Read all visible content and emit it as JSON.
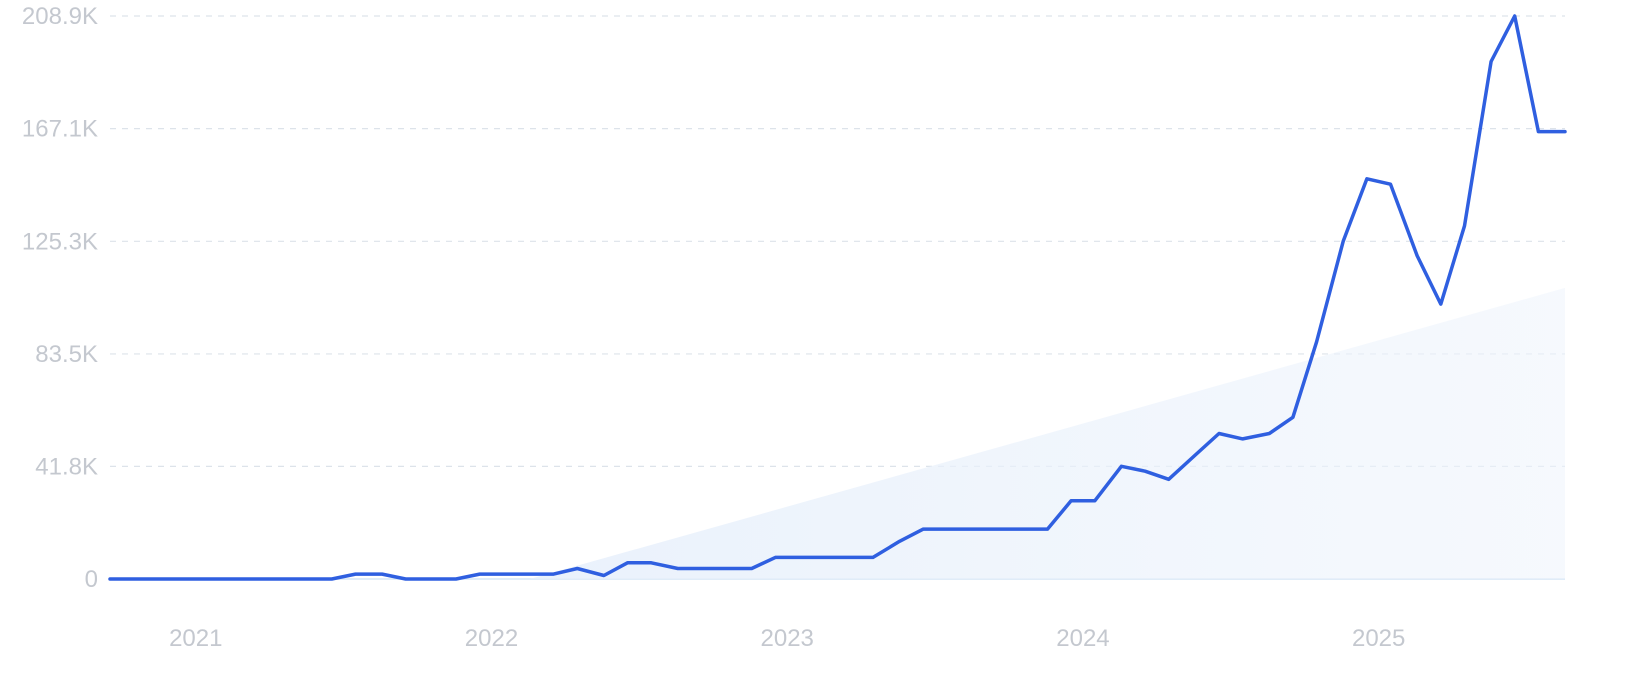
{
  "chart_data": {
    "type": "line",
    "title": "",
    "xlabel": "",
    "ylabel": "",
    "ylim": [
      0,
      208900
    ],
    "xlim": [
      2020.75,
      2025.67
    ],
    "y_ticks": [
      {
        "value": 0,
        "label": "0"
      },
      {
        "value": 41800,
        "label": "41.8K"
      },
      {
        "value": 83500,
        "label": "83.5K"
      },
      {
        "value": 125300,
        "label": "125.3K"
      },
      {
        "value": 167100,
        "label": "167.1K"
      },
      {
        "value": 208900,
        "label": "208.9K"
      }
    ],
    "x_ticks": [
      {
        "value": 2021,
        "label": "2021"
      },
      {
        "value": 2022,
        "label": "2022"
      },
      {
        "value": 2023,
        "label": "2023"
      },
      {
        "value": 2024,
        "label": "2024"
      },
      {
        "value": 2025,
        "label": "2025"
      }
    ],
    "grid": true,
    "colors": {
      "line": "#2f5fe0",
      "trend_fill": "#e3edfb",
      "grid": "#dde3ea",
      "tick_text": "#c4c8cf",
      "baseline": "#d6e6f5"
    },
    "series": [
      {
        "style": "line",
        "x": [
          2020.75,
          2020.83,
          2020.92,
          2021.0,
          2021.08,
          2021.17,
          2021.25,
          2021.33,
          2021.42,
          2021.5,
          2021.58,
          2021.67,
          2021.75,
          2021.83,
          2021.92,
          2022.0,
          2022.08,
          2022.17,
          2022.25,
          2022.33,
          2022.42,
          2022.5,
          2022.58,
          2022.67,
          2022.75,
          2022.83,
          2022.92,
          2023.0,
          2023.08,
          2023.17,
          2023.25,
          2023.33,
          2023.42,
          2023.5,
          2023.58,
          2023.67,
          2023.75,
          2023.83,
          2023.92,
          2024.0,
          2024.08,
          2024.17,
          2024.25,
          2024.33,
          2024.42,
          2024.5,
          2024.58,
          2024.67,
          2024.75,
          2024.83,
          2024.92,
          2025.0,
          2025.08,
          2025.17,
          2025.25,
          2025.33,
          2025.42,
          2025.5,
          2025.58,
          2025.67
        ],
        "values": [
          0,
          0,
          0,
          0,
          0,
          0,
          0,
          0,
          0,
          0,
          1800,
          1800,
          0,
          0,
          0,
          1800,
          1800,
          1800,
          1800,
          3900,
          1300,
          6000,
          6000,
          3900,
          3900,
          3900,
          3900,
          8000,
          8000,
          8000,
          8000,
          8000,
          14000,
          18500,
          18500,
          18500,
          18500,
          18500,
          18500,
          29000,
          29000,
          41800,
          40000,
          37000,
          46000,
          54000,
          52000,
          54000,
          60000,
          88000,
          125300,
          148500,
          146500,
          120000,
          102000,
          131000,
          192000,
          208900,
          166000,
          166000
        ]
      },
      {
        "style": "trend_area",
        "x": [
          2022.17,
          2025.67
        ],
        "values": [
          0,
          108000
        ]
      }
    ]
  }
}
